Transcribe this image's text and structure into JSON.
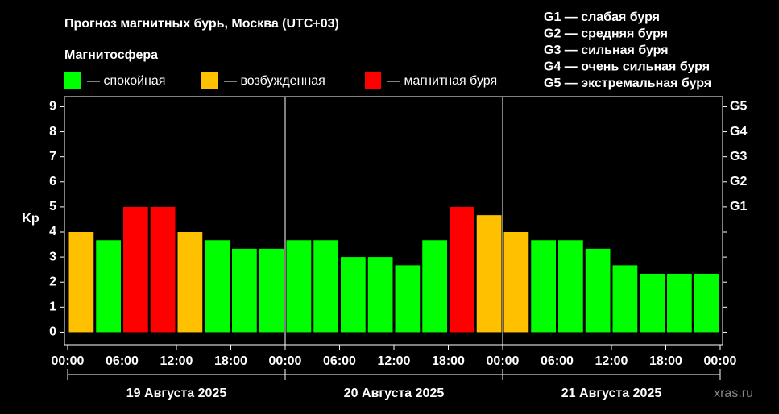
{
  "chart_data": {
    "type": "bar",
    "title": "Прогноз магнитных бурь, Москва (UTC+03)",
    "legend_title": "Магнитосфера",
    "legend": [
      {
        "name": "— спокойная",
        "color": "#00ff00"
      },
      {
        "name": "— возбужденная",
        "color": "#ffc000"
      },
      {
        "name": "— магнитная буря",
        "color": "#ff0000"
      }
    ],
    "scale_notes": [
      "G1 — слабая буря",
      "G2 — средняя буря",
      "G3 — сильная буря",
      "G4 — очень сильная буря",
      "G5 — экстремальная буря"
    ],
    "y_label": "Kp",
    "x": [
      0,
      3,
      6,
      9,
      12,
      15,
      18,
      21,
      24,
      27,
      30,
      33,
      36,
      39,
      42,
      45,
      48,
      51,
      54,
      57,
      60,
      63,
      66,
      69
    ],
    "values": [
      4,
      3.67,
      5,
      5,
      4,
      3.67,
      3.33,
      3.33,
      3.67,
      3.67,
      3,
      3,
      2.67,
      3.67,
      5,
      4.67,
      4,
      3.67,
      3.67,
      3.33,
      2.67,
      2.33,
      2.33,
      2.33
    ],
    "colors": [
      "#ffc000",
      "#00ff00",
      "#ff0000",
      "#ff0000",
      "#ffc000",
      "#00ff00",
      "#00ff00",
      "#00ff00",
      "#00ff00",
      "#00ff00",
      "#00ff00",
      "#00ff00",
      "#00ff00",
      "#00ff00",
      "#ff0000",
      "#ffc000",
      "#ffc000",
      "#00ff00",
      "#00ff00",
      "#00ff00",
      "#00ff00",
      "#00ff00",
      "#00ff00",
      "#00ff00"
    ],
    "xlim": [
      0,
      72
    ],
    "xticks": [
      {
        "value": 0,
        "label": "00:00"
      },
      {
        "value": 6,
        "label": "06:00"
      },
      {
        "value": 12,
        "label": "12:00"
      },
      {
        "value": 18,
        "label": "18:00"
      },
      {
        "value": 24,
        "label": "00:00"
      },
      {
        "value": 30,
        "label": "06:00"
      },
      {
        "value": 36,
        "label": "12:00"
      },
      {
        "value": 42,
        "label": "18:00"
      },
      {
        "value": 48,
        "label": "00:00"
      },
      {
        "value": 54,
        "label": "06:00"
      },
      {
        "value": 60,
        "label": "12:00"
      },
      {
        "value": 66,
        "label": "18:00"
      },
      {
        "value": 72,
        "label": "00:00"
      }
    ],
    "ylim": [
      -0.5,
      9.4
    ],
    "yticks": [
      0,
      1,
      2,
      3,
      4,
      5,
      6,
      7,
      8,
      9
    ],
    "y2ticks": [
      {
        "value": 5,
        "label": "G1"
      },
      {
        "value": 6,
        "label": "G2"
      },
      {
        "value": 7,
        "label": "G3"
      },
      {
        "value": 8,
        "label": "G4"
      },
      {
        "value": 9,
        "label": "G5"
      }
    ],
    "day_separators": [
      24,
      48
    ],
    "days": [
      "19 Августа 2025",
      "20 Августа 2025",
      "21 Августа 2025"
    ],
    "watermark": "xras.ru"
  }
}
